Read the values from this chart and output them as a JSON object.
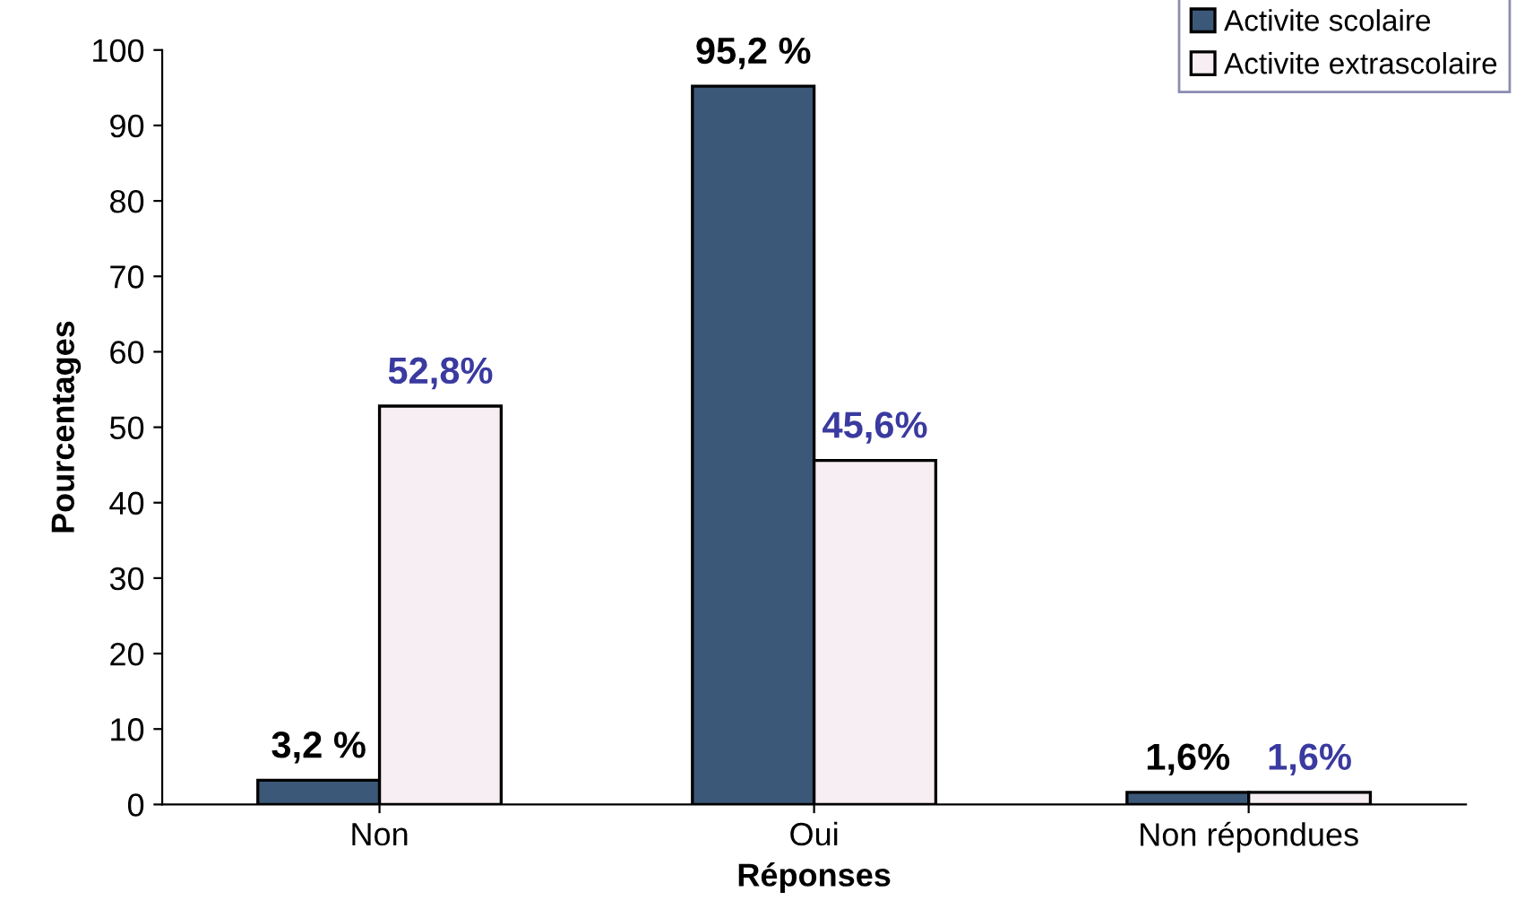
{
  "chart_data": {
    "type": "bar",
    "xlabel": "Réponses",
    "ylabel": "Pourcentages",
    "categories": [
      "Non",
      "Oui",
      "Non répondues"
    ],
    "series": [
      {
        "name": "Activite scolaire",
        "color": "#3b5878",
        "values": [
          3.2,
          95.2,
          1.6
        ],
        "value_labels": [
          "3,2 %",
          "95,2 %",
          "1,6%"
        ]
      },
      {
        "name": "Activite extrascolaire",
        "color": "#f6eef3",
        "values": [
          52.8,
          45.6,
          1.6
        ],
        "value_labels": [
          "52,8%",
          "45,6%",
          "1,6%"
        ]
      }
    ],
    "ylim": [
      0,
      100
    ],
    "yticks": [
      0,
      10,
      20,
      30,
      40,
      50,
      60,
      70,
      80,
      90,
      100
    ],
    "grid": false,
    "legend": "top right"
  }
}
